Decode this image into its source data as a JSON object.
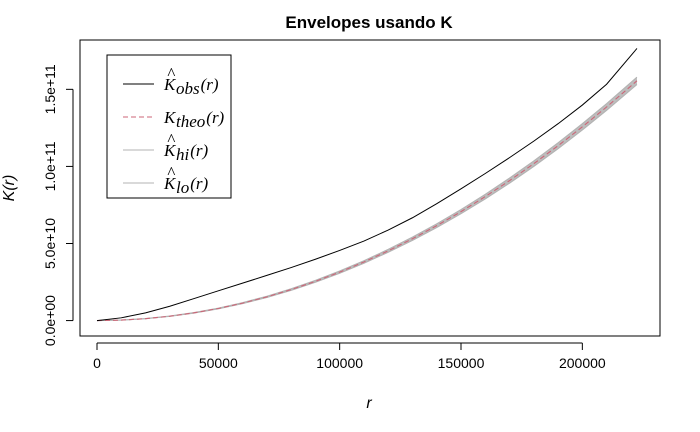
{
  "chart_data": {
    "type": "line",
    "title": "Envelopes usando K",
    "xlabel": "r",
    "ylabel": "K(r)",
    "xlim": [
      -7000,
      232000
    ],
    "ylim": [
      -10000000000,
      182000000000
    ],
    "x_ticks": [
      0,
      50000,
      100000,
      150000,
      200000
    ],
    "x_tick_labels": [
      "0",
      "50000",
      "100000",
      "150000",
      "200000"
    ],
    "y_ticks": [
      0,
      50000000000,
      100000000000,
      150000000000
    ],
    "y_tick_labels": [
      "0.0e+00",
      "5.0e+10",
      "1.0e+11",
      "1.5e+11"
    ],
    "x": [
      0,
      10000,
      20000,
      30000,
      40000,
      50000,
      60000,
      70000,
      80000,
      90000,
      100000,
      110000,
      120000,
      130000,
      140000,
      150000,
      160000,
      170000,
      180000,
      190000,
      200000,
      210000,
      222500
    ],
    "series": [
      {
        "name": "obs",
        "color": "#000000",
        "style": "solid",
        "values": [
          0,
          1800000000,
          5000000000,
          9300000000,
          14300000000,
          19300000000,
          24300000000,
          29300000000,
          34400000000,
          39800000000,
          45500000000,
          51600000000,
          58700000000,
          66700000000,
          75800000000,
          85500000000,
          95400000000,
          105700000000,
          116400000000,
          127700000000,
          139800000000,
          153300000000,
          176500000000
        ]
      },
      {
        "name": "theo",
        "color": "#cc6677",
        "style": "dashed",
        "values": [
          0,
          314000000,
          1257000000,
          2827000000,
          5027000000,
          7854000000,
          11310000000,
          15394000000,
          20106000000,
          25447000000,
          31416000000,
          38013000000,
          45239000000,
          53093000000,
          61575000000,
          70686000000,
          80425000000,
          90792000000,
          101788000000,
          113411000000,
          125664000000,
          138544000000,
          155528000000
        ]
      },
      {
        "name": "hi",
        "color": "#b3b3b3",
        "style": "solid",
        "values": [
          0,
          334000000,
          1317000000,
          2937000000,
          5197000000,
          8094000000,
          11630000000,
          15804000000,
          20606000000,
          26047000000,
          32126000000,
          38833000000,
          46169000000,
          54153000000,
          62775000000,
          72026000000,
          81905000000,
          92412000000,
          103548000000,
          115311000000,
          127704000000,
          140724000000,
          157928000000
        ]
      },
      {
        "name": "lo",
        "color": "#b3b3b3",
        "style": "solid",
        "values": [
          0,
          294000000,
          1197000000,
          2717000000,
          4857000000,
          7614000000,
          10990000000,
          14984000000,
          19606000000,
          24847000000,
          30706000000,
          37193000000,
          44309000000,
          52033000000,
          60375000000,
          69346000000,
          78945000000,
          89172000000,
          100028000000,
          111511000000,
          123624000000,
          136364000000,
          153128000000
        ]
      }
    ],
    "legend": {
      "position": "top-left",
      "entries": [
        {
          "main": "K",
          "hat": true,
          "sub": "obs",
          "tail": "(r)",
          "color": "#000000",
          "style": "solid"
        },
        {
          "main": "K",
          "hat": false,
          "sub": "theo",
          "tail": "(r)",
          "color": "#cc6677",
          "style": "dashed"
        },
        {
          "main": "K",
          "hat": true,
          "sub": "hi",
          "tail": "(r)",
          "color": "#b3b3b3",
          "style": "solid"
        },
        {
          "main": "K",
          "hat": true,
          "sub": "lo",
          "tail": "(r)",
          "color": "#b3b3b3",
          "style": "solid"
        }
      ]
    },
    "envelope_fill": "#bdbdbd",
    "grid": false
  }
}
